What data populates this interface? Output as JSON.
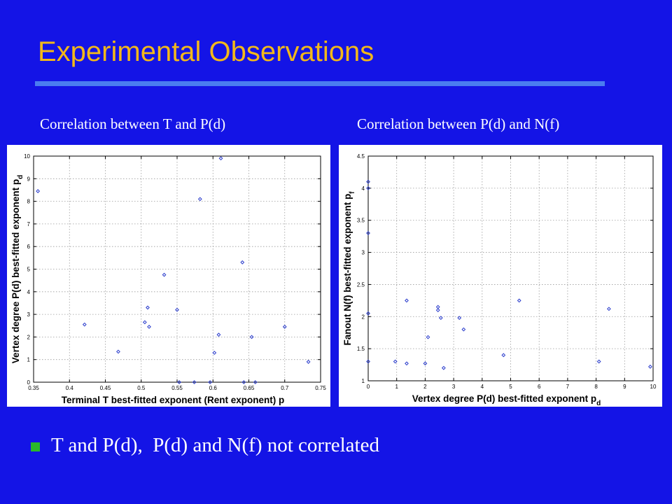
{
  "slide": {
    "title": "Experimental Observations",
    "bullet": "T and P(d),  P(d) and N(f) not correlated",
    "bullet_color": "#2ab82a",
    "title_color": "#f2b81a",
    "background_color": "#1414e6"
  },
  "chart_data": [
    {
      "type": "scatter",
      "caption": "Correlation between T and P(d)",
      "xlabel": "Terminal T best-fitted exponent (Rent exponent) p",
      "ylabel": "Vertex degree P(d) best-fitted exponent p",
      "ylabel_subscript": "d",
      "xlim": [
        0.35,
        0.75
      ],
      "ylim": [
        0,
        10
      ],
      "xticks": [
        "0.35",
        "0.4",
        "0.45",
        "0.5",
        "0.55",
        "0.6",
        "0.65",
        "0.7",
        "0.75"
      ],
      "yticks": [
        "0",
        "1",
        "2",
        "3",
        "4",
        "5",
        "6",
        "7",
        "8",
        "9",
        "10"
      ],
      "grid": true,
      "marker_color": "#2a3ccc",
      "points": [
        {
          "x": 0.356,
          "y": 8.45
        },
        {
          "x": 0.421,
          "y": 2.55
        },
        {
          "x": 0.468,
          "y": 1.35
        },
        {
          "x": 0.505,
          "y": 2.65
        },
        {
          "x": 0.509,
          "y": 3.3
        },
        {
          "x": 0.511,
          "y": 2.45
        },
        {
          "x": 0.532,
          "y": 4.75
        },
        {
          "x": 0.55,
          "y": 3.2
        },
        {
          "x": 0.553,
          "y": 0.0
        },
        {
          "x": 0.574,
          "y": 0.0
        },
        {
          "x": 0.582,
          "y": 8.1
        },
        {
          "x": 0.596,
          "y": 0.0
        },
        {
          "x": 0.602,
          "y": 1.3
        },
        {
          "x": 0.608,
          "y": 2.1
        },
        {
          "x": 0.611,
          "y": 9.9
        },
        {
          "x": 0.641,
          "y": 5.3
        },
        {
          "x": 0.643,
          "y": 0.0
        },
        {
          "x": 0.654,
          "y": 2.0
        },
        {
          "x": 0.659,
          "y": 0.0
        },
        {
          "x": 0.7,
          "y": 2.45
        },
        {
          "x": 0.733,
          "y": 0.9
        }
      ]
    },
    {
      "type": "scatter",
      "caption": "Correlation between P(d) and N(f)",
      "xlabel": "Vertex degree P(d) best-fitted exponent p",
      "xlabel_subscript": "d",
      "ylabel": "Fanout N(f) best-fitted exponent p",
      "ylabel_subscript": "f",
      "xlim": [
        0,
        10
      ],
      "ylim": [
        1,
        4.5
      ],
      "xticks": [
        "0",
        "1",
        "2",
        "3",
        "4",
        "5",
        "6",
        "7",
        "8",
        "9",
        "10"
      ],
      "yticks": [
        "1",
        "1.5",
        "2",
        "2.5",
        "3",
        "3.5",
        "4",
        "4.5"
      ],
      "grid": true,
      "marker_color": "#2a3ccc",
      "points": [
        {
          "x": 0.0,
          "y": 4.1
        },
        {
          "x": 0.0,
          "y": 4.0
        },
        {
          "x": 0.0,
          "y": 3.3
        },
        {
          "x": 0.0,
          "y": 2.05
        },
        {
          "x": 0.0,
          "y": 1.3
        },
        {
          "x": 0.95,
          "y": 1.3
        },
        {
          "x": 1.35,
          "y": 2.25
        },
        {
          "x": 1.35,
          "y": 1.27
        },
        {
          "x": 2.0,
          "y": 1.27
        },
        {
          "x": 2.1,
          "y": 1.68
        },
        {
          "x": 2.45,
          "y": 2.15
        },
        {
          "x": 2.45,
          "y": 2.1
        },
        {
          "x": 2.55,
          "y": 1.98
        },
        {
          "x": 2.65,
          "y": 1.2
        },
        {
          "x": 3.2,
          "y": 1.98
        },
        {
          "x": 3.35,
          "y": 1.8
        },
        {
          "x": 4.75,
          "y": 1.4
        },
        {
          "x": 5.3,
          "y": 2.25
        },
        {
          "x": 8.1,
          "y": 1.3
        },
        {
          "x": 8.45,
          "y": 2.12
        },
        {
          "x": 9.9,
          "y": 1.22
        }
      ]
    }
  ]
}
